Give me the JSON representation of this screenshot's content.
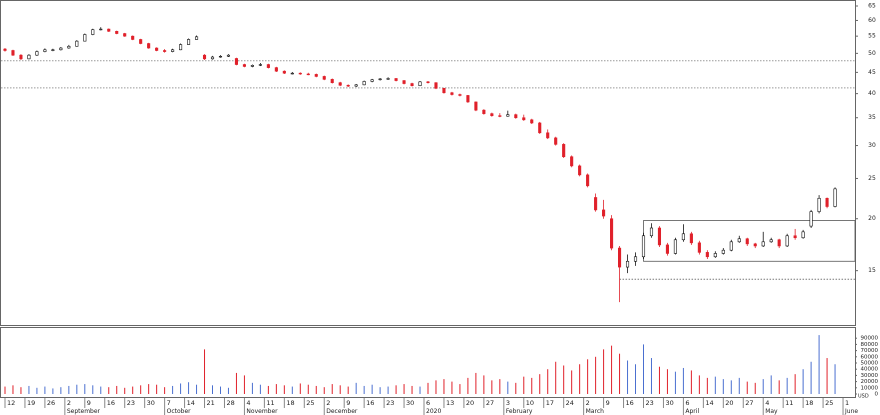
{
  "chart_data": {
    "type": "candlestick",
    "currency": "USD",
    "log_scale": true,
    "ylim": [
      11.1,
      67.2
    ],
    "yticks": [
      15,
      20,
      25,
      30,
      35,
      40,
      45,
      50,
      55,
      60,
      65
    ],
    "xlim": [
      -0.5,
      106.5
    ],
    "up_color": "#ffffff",
    "down_color": "#e0202a",
    "outline_color": "#111111",
    "levels": [
      48,
      41.3
    ],
    "range_box": {
      "xrange": [
        80,
        106.5
      ],
      "top": 19.8,
      "bottom": 15.8,
      "floor": 14.3,
      "floor_start": 77
    },
    "ohlc": [
      [
        51.2,
        51.5,
        50.5,
        50.8
      ],
      [
        50.8,
        51,
        49.3,
        49.5
      ],
      [
        49.5,
        49.8,
        48.2,
        48.5
      ],
      [
        48.5,
        49.8,
        48.4,
        49.5
      ],
      [
        49.5,
        50.8,
        49.3,
        50.5
      ],
      [
        50.5,
        51.4,
        50.3,
        51
      ],
      [
        51,
        51.3,
        50.6,
        51
      ],
      [
        51,
        51.8,
        50.8,
        51.5
      ],
      [
        51.5,
        52.4,
        51.3,
        52
      ],
      [
        52,
        53.8,
        51.9,
        53.5
      ],
      [
        53.5,
        55.8,
        53.4,
        55.5
      ],
      [
        55.5,
        57.3,
        55.3,
        57
      ],
      [
        57,
        57.8,
        56.8,
        57.2
      ],
      [
        57.2,
        57.4,
        56.3,
        56.5
      ],
      [
        56.5,
        56.7,
        55.6,
        55.8
      ],
      [
        55.8,
        56,
        54.8,
        55
      ],
      [
        55,
        55.2,
        53.8,
        54
      ],
      [
        54,
        54.2,
        52.6,
        52.8
      ],
      [
        52.8,
        53,
        51.3,
        51.5
      ],
      [
        51.5,
        51.7,
        50.6,
        50.8
      ],
      [
        50.8,
        51.2,
        50.2,
        50.5
      ],
      [
        50.5,
        51.3,
        50.3,
        51
      ],
      [
        51,
        52.8,
        50.9,
        52.5
      ],
      [
        52.5,
        54.3,
        52.4,
        54
      ],
      [
        54,
        55.2,
        53.9,
        54.8
      ],
      [
        49.5,
        49.8,
        48.2,
        48.5
      ],
      [
        48.5,
        49.3,
        48.3,
        49
      ],
      [
        49,
        49.5,
        48.8,
        49.2
      ],
      [
        49.2,
        49.8,
        49,
        49.5
      ],
      [
        48.6,
        48.8,
        46.8,
        47
      ],
      [
        47,
        47.2,
        46.3,
        46.5
      ],
      [
        46.5,
        47,
        46.3,
        46.8
      ],
      [
        46.8,
        47.4,
        46.6,
        47
      ],
      [
        47,
        47.2,
        46,
        46.2
      ],
      [
        46.2,
        46.4,
        45.1,
        45.3
      ],
      [
        45.3,
        45.5,
        44.6,
        44.8
      ],
      [
        44.8,
        45.1,
        44.5,
        44.8
      ],
      [
        44.8,
        45,
        44.4,
        44.6
      ],
      [
        44.6,
        44.9,
        44.3,
        44.5
      ],
      [
        44.5,
        44.7,
        43.8,
        44
      ],
      [
        44,
        44.2,
        43.1,
        43.3
      ],
      [
        43.3,
        43.5,
        42.3,
        42.5
      ],
      [
        42.5,
        42.7,
        41.7,
        41.9
      ],
      [
        41.9,
        42.1,
        41.5,
        41.7
      ],
      [
        41.7,
        42.2,
        41.5,
        42
      ],
      [
        42,
        43,
        41.9,
        42.8
      ],
      [
        42.8,
        43.4,
        42.6,
        43.2
      ],
      [
        43.2,
        43.6,
        43,
        43.4
      ],
      [
        43.4,
        43.8,
        43.2,
        43.5
      ],
      [
        43.5,
        43.6,
        42.8,
        43
      ],
      [
        43,
        43.1,
        42.1,
        42.3
      ],
      [
        42.3,
        42.5,
        41.6,
        41.8
      ],
      [
        41.8,
        42.9,
        41.7,
        42.7
      ],
      [
        42.7,
        42.9,
        42.3,
        42.5
      ],
      [
        42.5,
        42.6,
        41,
        41.2
      ],
      [
        41.2,
        41.3,
        40,
        40.2
      ],
      [
        40.2,
        40.4,
        39.6,
        39.8
      ],
      [
        39.8,
        40,
        39.4,
        39.6
      ],
      [
        39.6,
        39.7,
        38,
        38.2
      ],
      [
        38.2,
        38.3,
        36.3,
        36.5
      ],
      [
        36.5,
        36.7,
        35.6,
        35.8
      ],
      [
        35.8,
        36,
        35.2,
        35.4
      ],
      [
        35.4,
        35.9,
        35.1,
        35.3
      ],
      [
        35.3,
        36.4,
        35.2,
        35.6
      ],
      [
        35.6,
        35.8,
        34.8,
        35
      ],
      [
        35,
        35.6,
        34.4,
        34.6
      ],
      [
        34.6,
        34.8,
        33.8,
        34
      ],
      [
        34,
        34.2,
        32,
        32.2
      ],
      [
        32.2,
        32.8,
        31.1,
        31.3
      ],
      [
        31.3,
        31.5,
        30,
        30.2
      ],
      [
        30.2,
        30.4,
        28,
        28.2
      ],
      [
        28.2,
        28.4,
        26.6,
        26.8
      ],
      [
        26.8,
        27,
        25.3,
        25.5
      ],
      [
        25.5,
        25.7,
        23.8,
        24
      ],
      [
        22.5,
        23,
        20.8,
        21
      ],
      [
        21,
        22.2,
        20,
        20.3
      ],
      [
        20,
        20.4,
        16.8,
        17
      ],
      [
        17,
        17.2,
        12.6,
        15.3
      ],
      [
        15.3,
        16.4,
        14.8,
        15.8
      ],
      [
        15.8,
        16.6,
        15.4,
        16.2
      ],
      [
        16.2,
        18.5,
        16,
        18.2
      ],
      [
        18.2,
        19.5,
        18,
        19
      ],
      [
        19,
        19.2,
        17.1,
        17.3
      ],
      [
        17.3,
        17.5,
        16.3,
        16.5
      ],
      [
        16.5,
        18,
        16.4,
        17.8
      ],
      [
        17.8,
        19.4,
        17.6,
        18.4
      ],
      [
        18.4,
        18.6,
        17.3,
        17.5
      ],
      [
        17.5,
        17.7,
        16.4,
        16.6
      ],
      [
        16.6,
        16.8,
        16,
        16.2
      ],
      [
        16.2,
        16.7,
        16.1,
        16.5
      ],
      [
        16.5,
        17,
        16.4,
        16.8
      ],
      [
        16.8,
        17.8,
        16.7,
        17.6
      ],
      [
        17.6,
        18.2,
        17.5,
        17.9
      ],
      [
        17.9,
        18,
        17.2,
        17.4
      ],
      [
        17.4,
        17.5,
        17,
        17.2
      ],
      [
        17.2,
        18.6,
        17.1,
        17.6
      ],
      [
        17.6,
        18,
        17.5,
        17.8
      ],
      [
        17.8,
        17.9,
        17,
        17.2
      ],
      [
        17.2,
        18.4,
        17.1,
        18.2
      ],
      [
        18.2,
        18.9,
        17.8,
        18
      ],
      [
        18,
        18.8,
        17.9,
        18.6
      ],
      [
        19.2,
        21,
        19,
        20.8
      ],
      [
        20.8,
        22.8,
        20.6,
        22.4
      ],
      [
        22.4,
        22.5,
        21.2,
        21.4
      ],
      [
        21.4,
        23.8,
        21.3,
        23.6
      ]
    ],
    "volume": {
      "ylim": [
        0,
        100000
      ],
      "yticks": [
        0,
        10000,
        20000,
        30000,
        40000,
        50000,
        60000,
        70000,
        80000,
        90000
      ],
      "up_color": "#4a6fd0",
      "down_color": "#e0202a",
      "values": [
        12000,
        14000,
        11000,
        13000,
        10000,
        12000,
        9000,
        11000,
        13000,
        15000,
        16000,
        14000,
        12000,
        11000,
        13000,
        10000,
        12000,
        14000,
        16000,
        15000,
        11000,
        13000,
        17000,
        19000,
        15000,
        72000,
        14000,
        12000,
        10000,
        34000,
        30000,
        18000,
        15000,
        13000,
        16000,
        14000,
        12000,
        17000,
        15000,
        13000,
        11000,
        16000,
        14000,
        12000,
        18000,
        13000,
        15000,
        11000,
        12000,
        14000,
        16000,
        13000,
        12000,
        18000,
        22000,
        24000,
        20000,
        16000,
        26000,
        34000,
        30000,
        22000,
        24000,
        20000,
        18000,
        28000,
        26000,
        32000,
        40000,
        52000,
        46000,
        38000,
        48000,
        56000,
        60000,
        72000,
        78000,
        65000,
        54000,
        48000,
        80000,
        58000,
        44000,
        40000,
        36000,
        42000,
        38000,
        30000,
        26000,
        28000,
        24000,
        22000,
        26000,
        20000,
        18000,
        24000,
        30000,
        22000,
        26000,
        32000,
        40000,
        52000,
        95000,
        58000,
        48000
      ]
    },
    "xticks": [
      {
        "value": 0,
        "label": "12"
      },
      {
        "value": 2.5,
        "label": "19"
      },
      {
        "value": 5,
        "label": "26"
      },
      {
        "value": 7.5,
        "label": "2"
      },
      {
        "value": 10,
        "label": "9"
      },
      {
        "value": 12.5,
        "label": "16"
      },
      {
        "value": 15,
        "label": "23"
      },
      {
        "value": 17.5,
        "label": "30"
      },
      {
        "value": 20,
        "label": "7"
      },
      {
        "value": 22.5,
        "label": "14"
      },
      {
        "value": 25,
        "label": "21"
      },
      {
        "value": 27.5,
        "label": "28"
      },
      {
        "value": 30,
        "label": "4"
      },
      {
        "value": 32.5,
        "label": "11"
      },
      {
        "value": 35,
        "label": "18"
      },
      {
        "value": 37.5,
        "label": "25"
      },
      {
        "value": 40,
        "label": "2"
      },
      {
        "value": 42.5,
        "label": "9"
      },
      {
        "value": 45,
        "label": "16"
      },
      {
        "value": 47.5,
        "label": "23"
      },
      {
        "value": 50,
        "label": "30"
      },
      {
        "value": 52.5,
        "label": "6"
      },
      {
        "value": 55,
        "label": "13"
      },
      {
        "value": 57.5,
        "label": "20"
      },
      {
        "value": 60,
        "label": "27"
      },
      {
        "value": 62.5,
        "label": "3"
      },
      {
        "value": 65,
        "label": "10"
      },
      {
        "value": 67.5,
        "label": "17"
      },
      {
        "value": 70,
        "label": "24"
      },
      {
        "value": 72.5,
        "label": "2"
      },
      {
        "value": 75,
        "label": "9"
      },
      {
        "value": 77.5,
        "label": "16"
      },
      {
        "value": 80,
        "label": "23"
      },
      {
        "value": 82.5,
        "label": "30"
      },
      {
        "value": 85,
        "label": "6"
      },
      {
        "value": 87.5,
        "label": "14"
      },
      {
        "value": 90,
        "label": "20"
      },
      {
        "value": 92.5,
        "label": "27"
      },
      {
        "value": 95,
        "label": "4"
      },
      {
        "value": 97.5,
        "label": "11"
      },
      {
        "value": 100,
        "label": "18"
      },
      {
        "value": 102.5,
        "label": "25"
      },
      {
        "value": 105,
        "label": "1"
      }
    ],
    "month_ticks": [
      {
        "value": 7.5,
        "label": "September"
      },
      {
        "value": 20,
        "label": "October"
      },
      {
        "value": 30,
        "label": "November"
      },
      {
        "value": 40,
        "label": "December"
      },
      {
        "value": 52.5,
        "label": "2020"
      },
      {
        "value": 62.5,
        "label": "February"
      },
      {
        "value": 72.5,
        "label": "March"
      },
      {
        "value": 85,
        "label": "April"
      },
      {
        "value": 95,
        "label": "May"
      },
      {
        "value": 105,
        "label": "June"
      }
    ]
  }
}
